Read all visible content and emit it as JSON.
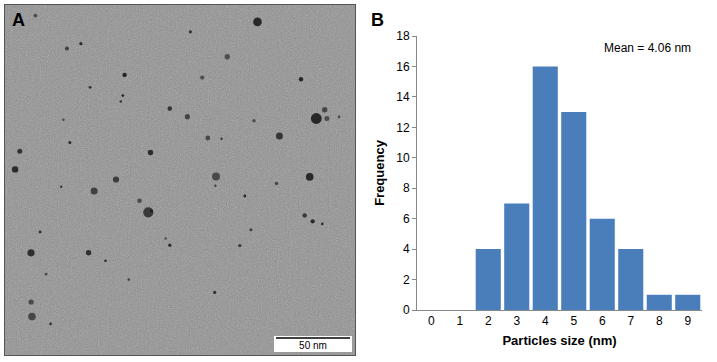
{
  "panel_a": {
    "label": "A",
    "scale_bar": "50 nm"
  },
  "chart_data": {
    "type": "bar",
    "panel_label": "B",
    "x": [
      0,
      1,
      2,
      3,
      4,
      5,
      6,
      7,
      8,
      9
    ],
    "values": [
      0,
      0,
      4,
      7,
      16,
      13,
      6,
      4,
      1,
      1
    ],
    "color": "#4a7ebb",
    "x_label": "Particles size (nm)",
    "y_label": "Frequency",
    "annotations": [
      "Mean = 4.06 nm"
    ],
    "xlim": [
      -0.5,
      9.5
    ],
    "xticks": [
      0,
      1,
      2,
      3,
      4,
      5,
      6,
      7,
      8,
      9
    ],
    "ylim": [
      0,
      18
    ],
    "yticks": [
      0,
      2,
      4,
      6,
      8,
      10,
      12,
      14,
      16,
      18
    ],
    "grid": false
  }
}
